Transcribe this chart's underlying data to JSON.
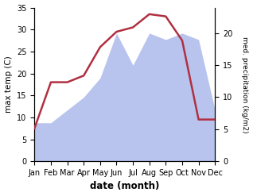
{
  "months": [
    1,
    2,
    3,
    4,
    5,
    6,
    7,
    8,
    9,
    10,
    11,
    12
  ],
  "month_labels": [
    "Jan",
    "Feb",
    "Mar",
    "Apr",
    "May",
    "Jun",
    "Jul",
    "Aug",
    "Sep",
    "Oct",
    "Nov",
    "Dec"
  ],
  "temperature": [
    7.5,
    18.0,
    18.0,
    19.5,
    26.0,
    29.5,
    30.5,
    33.5,
    33.0,
    27.5,
    9.5,
    9.5
  ],
  "precipitation": [
    6.0,
    6.0,
    8.0,
    10.0,
    13.0,
    20.0,
    15.0,
    20.0,
    19.0,
    20.0,
    19.0,
    8.0
  ],
  "temp_color": "#b03040",
  "precip_color": "#b8c4ee",
  "xlabel": "date (month)",
  "ylabel_left": "max temp (C)",
  "ylabel_right": "med. precipitation (kg/m2)",
  "ylim_left": [
    0,
    35
  ],
  "ylim_right": [
    0,
    24
  ],
  "temp_linewidth": 1.8,
  "background_color": "#ffffff"
}
